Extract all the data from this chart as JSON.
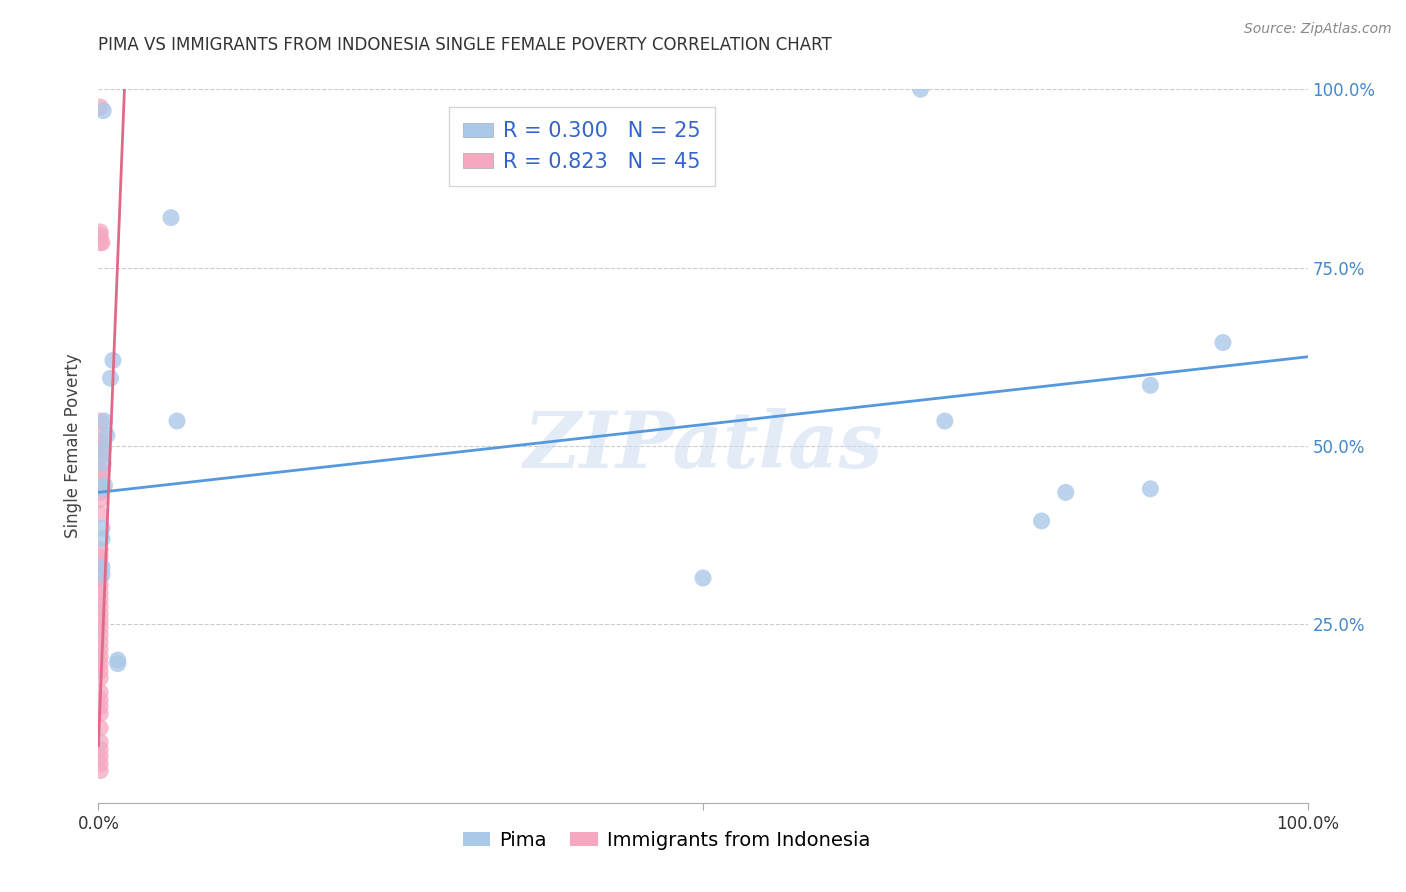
{
  "title": "PIMA VS IMMIGRANTS FROM INDONESIA SINGLE FEMALE POVERTY CORRELATION CHART",
  "source": "Source: ZipAtlas.com",
  "ylabel": "Single Female Poverty",
  "watermark": "ZIPatlas",
  "legend_labels": [
    "Pima",
    "Immigrants from Indonesia"
  ],
  "pima_R": 0.3,
  "pima_N": 25,
  "indonesia_R": 0.823,
  "indonesia_N": 45,
  "pima_color": "#aac8e8",
  "indonesia_color": "#f5a8c0",
  "pima_line_color": "#5599dd",
  "indonesia_line_color": "#e06888",
  "pima_scatter": [
    [
      0.004,
      0.97
    ],
    [
      0.06,
      0.82
    ],
    [
      0.012,
      0.62
    ],
    [
      0.01,
      0.595
    ],
    [
      0.005,
      0.535
    ],
    [
      0.007,
      0.515
    ],
    [
      0.004,
      0.495
    ],
    [
      0.004,
      0.475
    ],
    [
      0.065,
      0.535
    ],
    [
      0.005,
      0.445
    ],
    [
      0.003,
      0.44
    ],
    [
      0.003,
      0.385
    ],
    [
      0.003,
      0.37
    ],
    [
      0.003,
      0.33
    ],
    [
      0.003,
      0.32
    ],
    [
      0.016,
      0.2
    ],
    [
      0.016,
      0.195
    ],
    [
      0.5,
      0.315
    ],
    [
      0.7,
      0.535
    ],
    [
      0.78,
      0.395
    ],
    [
      0.8,
      0.435
    ],
    [
      0.87,
      0.44
    ],
    [
      0.87,
      0.585
    ],
    [
      0.93,
      0.645
    ],
    [
      0.68,
      1.0
    ]
  ],
  "indonesia_scatter": [
    [
      0.0015,
      0.975
    ],
    [
      0.0015,
      0.8
    ],
    [
      0.0015,
      0.795
    ],
    [
      0.0015,
      0.535
    ],
    [
      0.0015,
      0.515
    ],
    [
      0.0015,
      0.505
    ],
    [
      0.0015,
      0.495
    ],
    [
      0.0015,
      0.485
    ],
    [
      0.0015,
      0.465
    ],
    [
      0.0015,
      0.455
    ],
    [
      0.0015,
      0.445
    ],
    [
      0.0015,
      0.435
    ],
    [
      0.0015,
      0.425
    ],
    [
      0.0015,
      0.405
    ],
    [
      0.0015,
      0.355
    ],
    [
      0.0015,
      0.345
    ],
    [
      0.0015,
      0.335
    ],
    [
      0.0015,
      0.325
    ],
    [
      0.0015,
      0.315
    ],
    [
      0.0015,
      0.305
    ],
    [
      0.0015,
      0.295
    ],
    [
      0.0015,
      0.285
    ],
    [
      0.0015,
      0.275
    ],
    [
      0.0015,
      0.265
    ],
    [
      0.0015,
      0.255
    ],
    [
      0.0015,
      0.245
    ],
    [
      0.0015,
      0.235
    ],
    [
      0.0015,
      0.225
    ],
    [
      0.0015,
      0.215
    ],
    [
      0.0015,
      0.205
    ],
    [
      0.0015,
      0.195
    ],
    [
      0.0015,
      0.185
    ],
    [
      0.0015,
      0.175
    ],
    [
      0.0015,
      0.155
    ],
    [
      0.0015,
      0.145
    ],
    [
      0.0015,
      0.135
    ],
    [
      0.0015,
      0.125
    ],
    [
      0.0015,
      0.105
    ],
    [
      0.0015,
      0.085
    ],
    [
      0.0015,
      0.075
    ],
    [
      0.0015,
      0.065
    ],
    [
      0.0015,
      0.055
    ],
    [
      0.0015,
      0.045
    ],
    [
      0.0015,
      0.785
    ],
    [
      0.003,
      0.785
    ]
  ],
  "pima_trendline_x": [
    0.0,
    1.0
  ],
  "pima_trendline_y": [
    0.435,
    0.625
  ],
  "indonesia_trendline_x": [
    0.0,
    0.022
  ],
  "indonesia_trendline_y": [
    0.08,
    1.02
  ],
  "xlim": [
    0.0,
    1.0
  ],
  "ylim": [
    0.0,
    1.0
  ],
  "xticks": [
    0.0,
    0.5,
    1.0
  ],
  "xtick_labels": [
    "0.0%",
    "",
    "100.0%"
  ],
  "yticks": [
    0.25,
    0.5,
    0.75,
    1.0
  ],
  "ytick_labels_right": [
    "25.0%",
    "50.0%",
    "75.0%",
    "100.0%"
  ],
  "title_fontsize": 12,
  "axis_label_fontsize": 12,
  "tick_fontsize": 12,
  "legend_fontsize": 15,
  "source_fontsize": 10
}
